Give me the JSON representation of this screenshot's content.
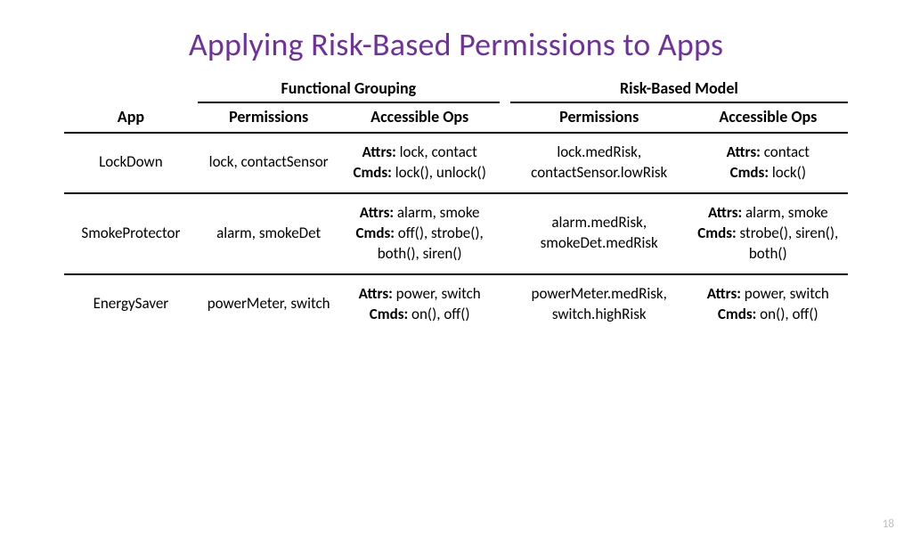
{
  "colors": {
    "title": "#7030a0",
    "text": "#000000",
    "background": "#ffffff",
    "rule": "#000000",
    "page_num": "#bfbfbf"
  },
  "typography": {
    "title_fontsize": 36,
    "header_fontsize": 18,
    "body_fontsize": 17,
    "font_family": "Calibri"
  },
  "title": "Applying Risk-Based Permissions to Apps",
  "page_number": "18",
  "table": {
    "type": "table",
    "group_headers": [
      "Functional Grouping",
      "Risk-Based Model"
    ],
    "columns": [
      "App",
      "Permissions",
      "Accessible Ops",
      "Permissions",
      "Accessible Ops"
    ],
    "labels": {
      "attrs": "Attrs:",
      "cmds": "Cmds:"
    },
    "rows": [
      {
        "app": "LockDown",
        "fg_permissions": "lock, contactSensor",
        "fg_attrs": "lock, contact",
        "fg_cmds": "lock(), unlock()",
        "rb_permissions": "lock.medRisk, contactSensor.lowRisk",
        "rb_attrs": "contact",
        "rb_cmds": "lock()"
      },
      {
        "app": "SmokeProtector",
        "fg_permissions": "alarm, smokeDet",
        "fg_attrs": "alarm, smoke",
        "fg_cmds": "off(), strobe(), both(), siren()",
        "rb_permissions": "alarm.medRisk, smokeDet.medRisk",
        "rb_attrs": "alarm, smoke",
        "rb_cmds": "strobe(), siren(), both()"
      },
      {
        "app": "EnergySaver",
        "fg_permissions": "powerMeter, switch",
        "fg_attrs": "power, switch",
        "fg_cmds": "on(), off()",
        "rb_permissions": "powerMeter.medRisk, switch.highRisk",
        "rb_attrs": "power, switch",
        "rb_cmds": "on(), off()"
      }
    ]
  }
}
